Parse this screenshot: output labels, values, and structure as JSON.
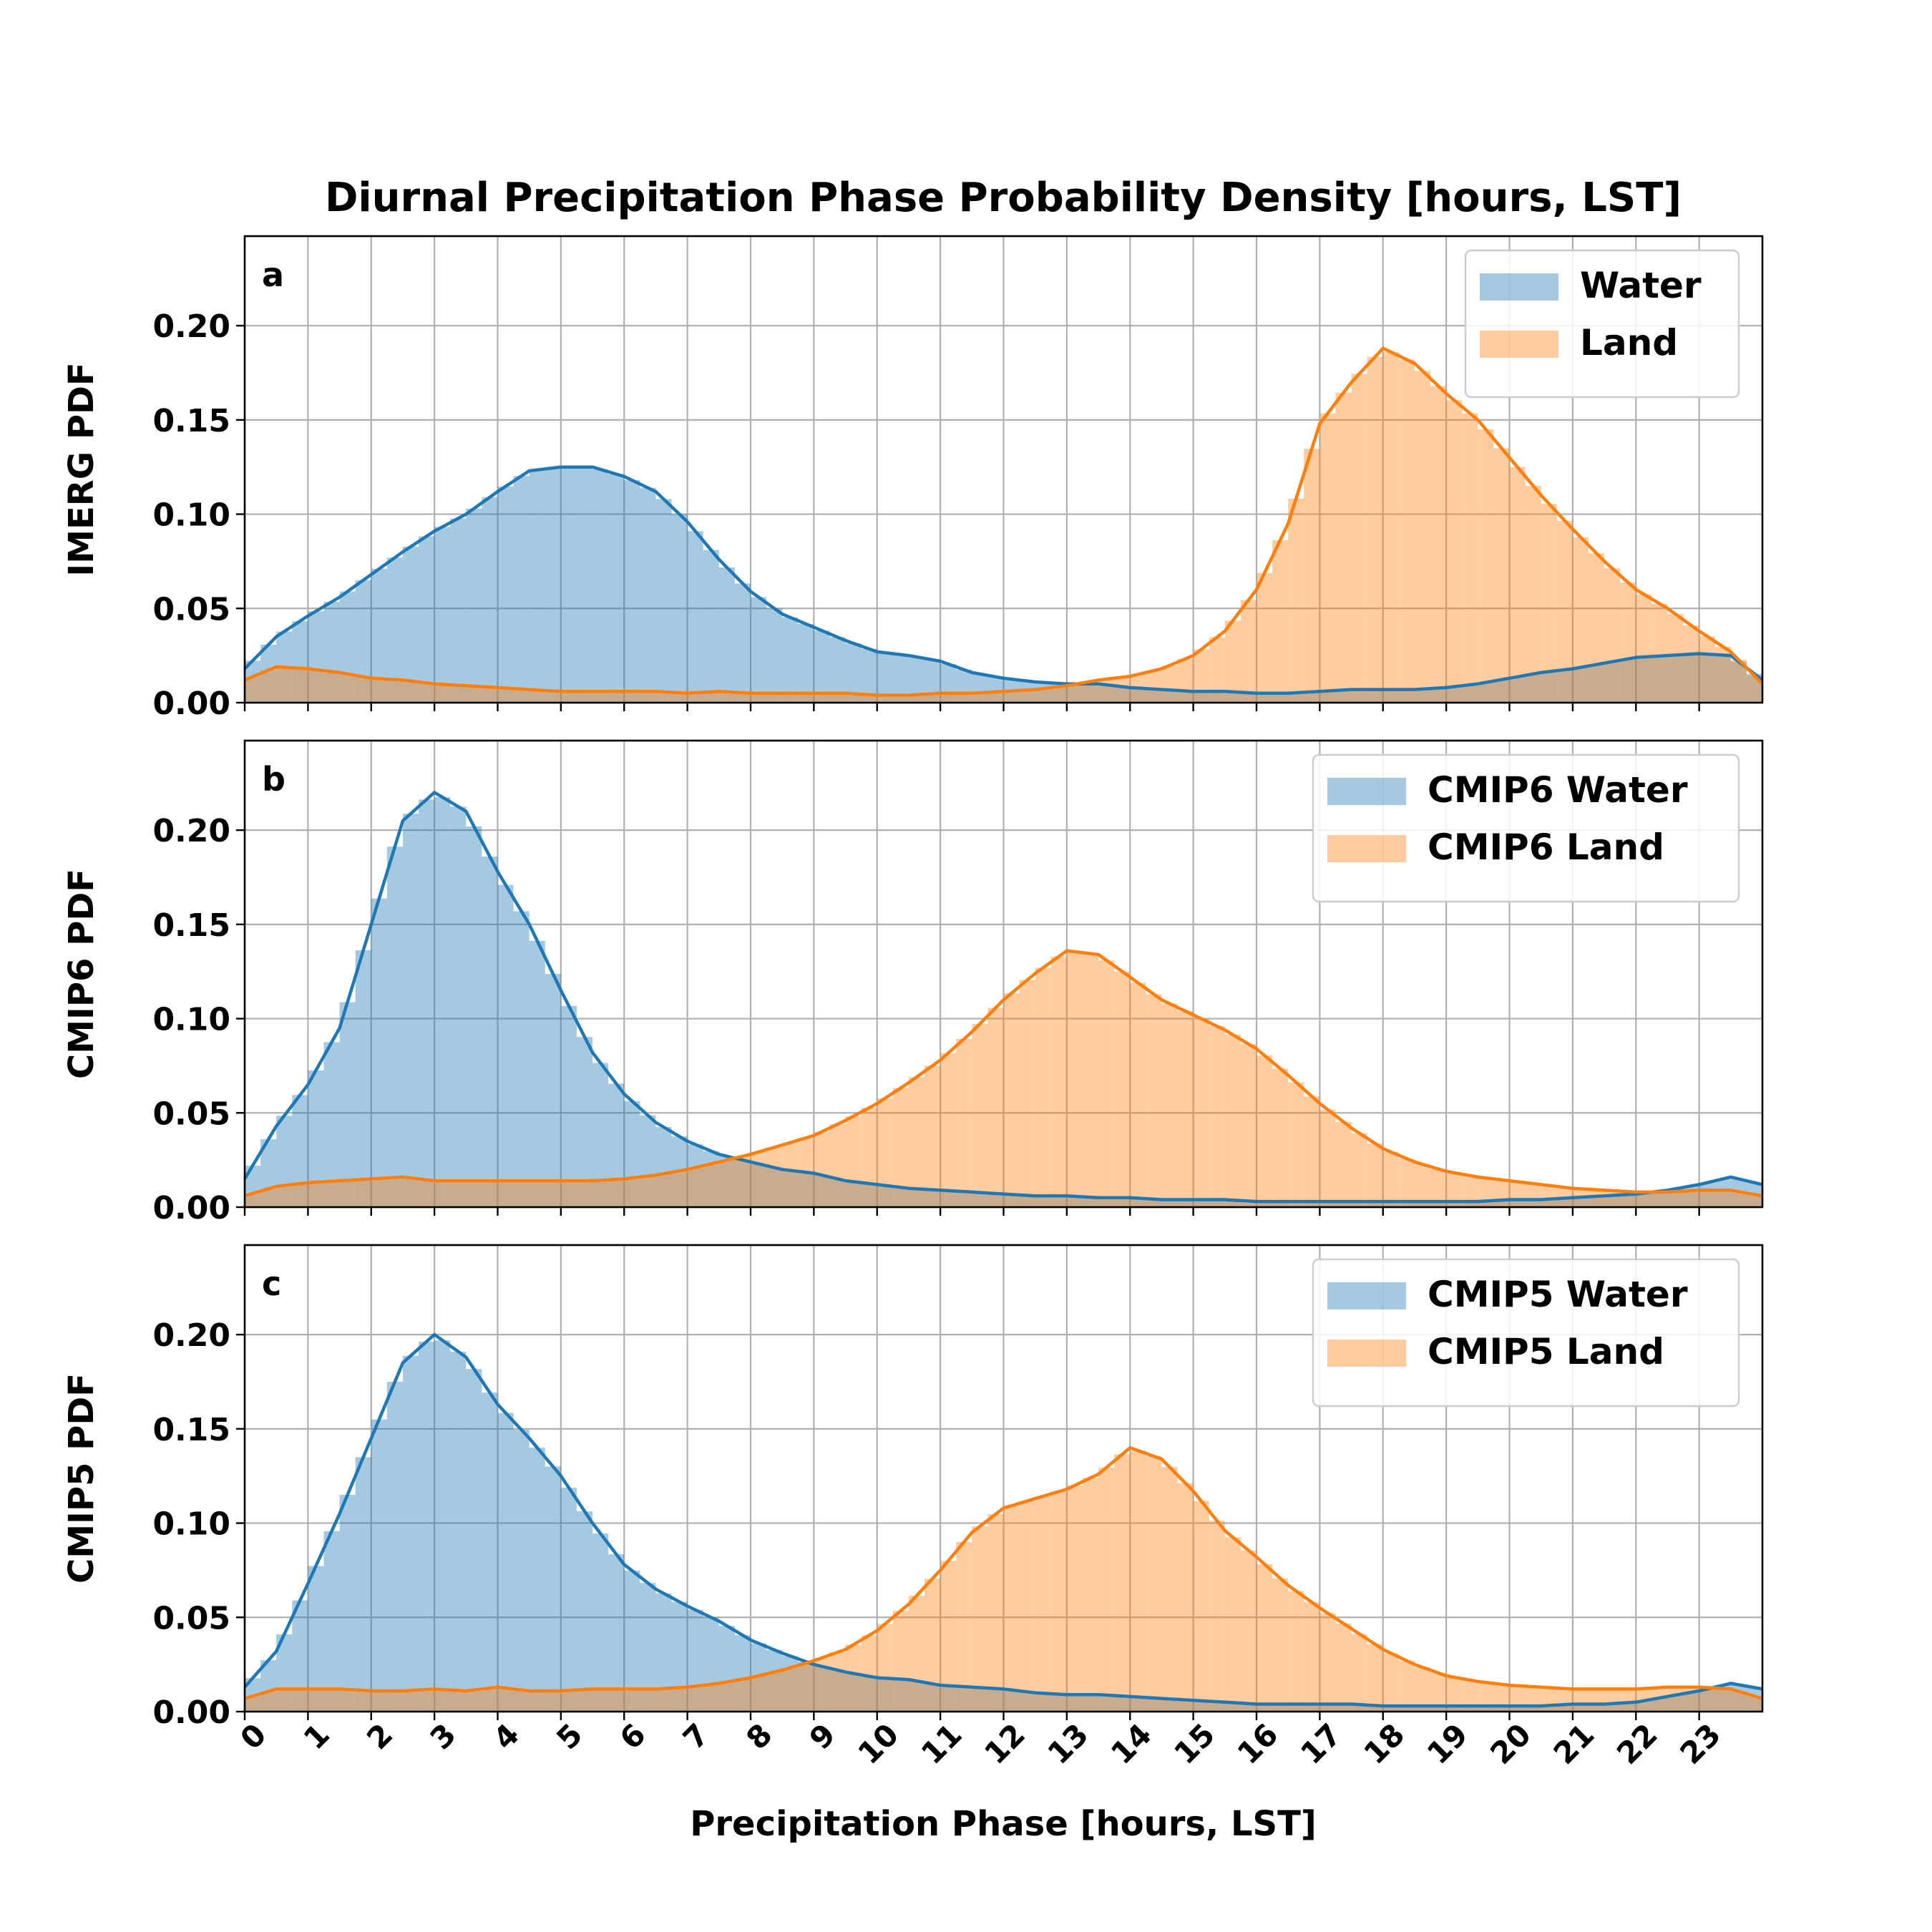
{
  "figure": {
    "title": "Diurnal Precipitation Phase Probability Density [hours, LST]",
    "xlabel": "Precipitation Phase [hours, LST]",
    "xticks": [
      "0",
      "1",
      "2",
      "3",
      "4",
      "5",
      "6",
      "7",
      "8",
      "9",
      "10",
      "11",
      "12",
      "13",
      "14",
      "15",
      "16",
      "17",
      "18",
      "19",
      "20",
      "21",
      "22",
      "23"
    ],
    "yticks": [
      "0.00",
      "0.05",
      "0.10",
      "0.15",
      "0.20"
    ],
    "colors": {
      "water": "#1f77b4",
      "land": "#ff7f0e",
      "grid": "#b0b0b0"
    }
  },
  "chart_data": [
    {
      "type": "area",
      "panel_label": "a",
      "ylabel": "IMERG PDF",
      "xlim": [
        0,
        24
      ],
      "ylim": [
        0,
        0.2475
      ],
      "grid": true,
      "legend_position": "top-right",
      "x": [
        0,
        0.5,
        1,
        1.5,
        2,
        2.5,
        3,
        3.5,
        4,
        4.5,
        5,
        5.5,
        6,
        6.5,
        7,
        7.5,
        8,
        8.5,
        9,
        9.5,
        10,
        10.5,
        11,
        11.5,
        12,
        12.5,
        13,
        13.5,
        14,
        14.5,
        15,
        15.5,
        16,
        16.5,
        17,
        17.5,
        18,
        18.5,
        19,
        19.5,
        20,
        20.5,
        21,
        21.5,
        22,
        22.5,
        23,
        23.5,
        24
      ],
      "series": [
        {
          "name": "Water",
          "values": [
            0.018,
            0.035,
            0.046,
            0.056,
            0.068,
            0.08,
            0.091,
            0.1,
            0.112,
            0.123,
            0.125,
            0.125,
            0.12,
            0.112,
            0.096,
            0.076,
            0.059,
            0.047,
            0.04,
            0.033,
            0.027,
            0.025,
            0.022,
            0.016,
            0.013,
            0.011,
            0.01,
            0.01,
            0.008,
            0.007,
            0.006,
            0.006,
            0.005,
            0.005,
            0.006,
            0.007,
            0.007,
            0.007,
            0.008,
            0.01,
            0.013,
            0.016,
            0.018,
            0.021,
            0.024,
            0.025,
            0.026,
            0.025,
            0.012
          ]
        },
        {
          "name": "Land",
          "values": [
            0.012,
            0.019,
            0.018,
            0.016,
            0.013,
            0.012,
            0.01,
            0.009,
            0.008,
            0.007,
            0.006,
            0.006,
            0.006,
            0.006,
            0.005,
            0.006,
            0.005,
            0.005,
            0.005,
            0.005,
            0.004,
            0.004,
            0.005,
            0.005,
            0.006,
            0.007,
            0.009,
            0.012,
            0.014,
            0.018,
            0.025,
            0.038,
            0.06,
            0.095,
            0.148,
            0.17,
            0.188,
            0.18,
            0.164,
            0.15,
            0.13,
            0.11,
            0.092,
            0.075,
            0.06,
            0.05,
            0.038,
            0.027,
            0.01
          ]
        }
      ]
    },
    {
      "type": "area",
      "panel_label": "b",
      "ylabel": "CMIP6 PDF",
      "xlim": [
        0,
        24
      ],
      "ylim": [
        0,
        0.2475
      ],
      "grid": true,
      "legend_position": "top-right",
      "x": [
        0,
        0.5,
        1,
        1.5,
        2,
        2.5,
        3,
        3.5,
        4,
        4.5,
        5,
        5.5,
        6,
        6.5,
        7,
        7.5,
        8,
        8.5,
        9,
        9.5,
        10,
        10.5,
        11,
        11.5,
        12,
        12.5,
        13,
        13.5,
        14,
        14.5,
        15,
        15.5,
        16,
        16.5,
        17,
        17.5,
        18,
        18.5,
        19,
        19.5,
        20,
        20.5,
        21,
        21.5,
        22,
        22.5,
        23,
        23.5,
        24
      ],
      "series": [
        {
          "name": "CMIP6 Water",
          "values": [
            0.015,
            0.043,
            0.065,
            0.095,
            0.15,
            0.205,
            0.22,
            0.21,
            0.178,
            0.15,
            0.115,
            0.082,
            0.06,
            0.045,
            0.035,
            0.028,
            0.024,
            0.02,
            0.018,
            0.014,
            0.012,
            0.01,
            0.009,
            0.008,
            0.007,
            0.006,
            0.006,
            0.005,
            0.005,
            0.004,
            0.004,
            0.004,
            0.003,
            0.003,
            0.003,
            0.003,
            0.003,
            0.003,
            0.003,
            0.003,
            0.004,
            0.004,
            0.005,
            0.006,
            0.007,
            0.009,
            0.012,
            0.016,
            0.012
          ]
        },
        {
          "name": "CMIP6 Land",
          "values": [
            0.006,
            0.011,
            0.013,
            0.014,
            0.015,
            0.016,
            0.014,
            0.014,
            0.014,
            0.014,
            0.014,
            0.014,
            0.015,
            0.017,
            0.02,
            0.024,
            0.028,
            0.033,
            0.038,
            0.046,
            0.055,
            0.066,
            0.078,
            0.093,
            0.11,
            0.124,
            0.136,
            0.134,
            0.122,
            0.11,
            0.102,
            0.094,
            0.084,
            0.07,
            0.055,
            0.042,
            0.031,
            0.024,
            0.019,
            0.016,
            0.014,
            0.012,
            0.01,
            0.009,
            0.008,
            0.008,
            0.009,
            0.009,
            0.006
          ]
        }
      ]
    },
    {
      "type": "area",
      "panel_label": "c",
      "ylabel": "CMIP5 PDF",
      "xlim": [
        0,
        24
      ],
      "ylim": [
        0,
        0.2475
      ],
      "grid": true,
      "legend_position": "top-right",
      "x": [
        0,
        0.5,
        1,
        1.5,
        2,
        2.5,
        3,
        3.5,
        4,
        4.5,
        5,
        5.5,
        6,
        6.5,
        7,
        7.5,
        8,
        8.5,
        9,
        9.5,
        10,
        10.5,
        11,
        11.5,
        12,
        12.5,
        13,
        13.5,
        14,
        14.5,
        15,
        15.5,
        16,
        16.5,
        17,
        17.5,
        18,
        18.5,
        19,
        19.5,
        20,
        20.5,
        21,
        21.5,
        22,
        22.5,
        23,
        23.5,
        24
      ],
      "series": [
        {
          "name": "CMIP5 Water",
          "values": [
            0.013,
            0.032,
            0.068,
            0.105,
            0.145,
            0.185,
            0.2,
            0.188,
            0.163,
            0.145,
            0.125,
            0.1,
            0.078,
            0.065,
            0.056,
            0.048,
            0.038,
            0.031,
            0.025,
            0.021,
            0.018,
            0.017,
            0.014,
            0.013,
            0.012,
            0.01,
            0.009,
            0.009,
            0.008,
            0.007,
            0.006,
            0.005,
            0.004,
            0.004,
            0.004,
            0.004,
            0.003,
            0.003,
            0.003,
            0.003,
            0.003,
            0.003,
            0.004,
            0.004,
            0.005,
            0.008,
            0.011,
            0.015,
            0.012
          ]
        },
        {
          "name": "CMIP5 Land",
          "values": [
            0.007,
            0.012,
            0.012,
            0.012,
            0.011,
            0.011,
            0.012,
            0.011,
            0.013,
            0.011,
            0.011,
            0.012,
            0.012,
            0.012,
            0.013,
            0.015,
            0.018,
            0.022,
            0.027,
            0.033,
            0.043,
            0.057,
            0.075,
            0.095,
            0.108,
            0.113,
            0.118,
            0.126,
            0.14,
            0.134,
            0.117,
            0.096,
            0.082,
            0.067,
            0.055,
            0.044,
            0.033,
            0.025,
            0.019,
            0.016,
            0.014,
            0.013,
            0.012,
            0.012,
            0.012,
            0.013,
            0.013,
            0.012,
            0.007
          ]
        }
      ]
    }
  ]
}
